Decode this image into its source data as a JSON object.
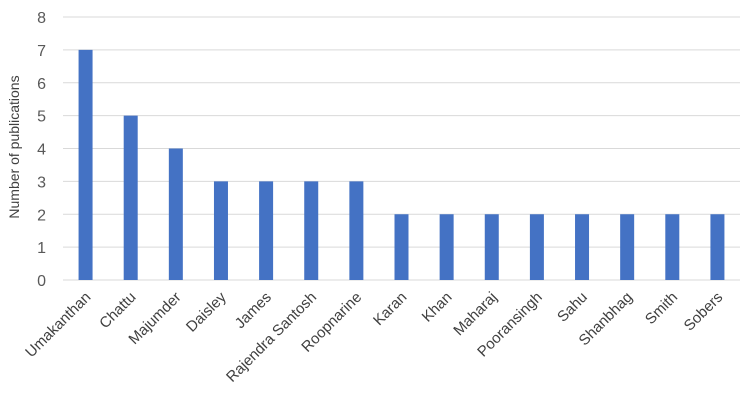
{
  "chart_data": {
    "type": "bar",
    "title": "",
    "xlabel": "",
    "ylabel": "Number of publications",
    "ylim": [
      0,
      8
    ],
    "yticks": [
      0,
      1,
      2,
      3,
      4,
      5,
      6,
      7,
      8
    ],
    "grid": true,
    "legend": "none",
    "bar_color": "#4472C4",
    "categories": [
      "Umakanthan",
      "Chattu",
      "Majumder",
      "Daisley",
      "James",
      "Rajendra Santosh",
      "Roopnarine",
      "Karan",
      "Khan",
      "Maharaj",
      "Pooransingh",
      "Sahu",
      "Shanbhag",
      "Smith",
      "Sobers"
    ],
    "values": [
      7,
      5,
      4,
      3,
      3,
      3,
      3,
      2,
      2,
      2,
      2,
      2,
      2,
      2,
      2
    ]
  }
}
